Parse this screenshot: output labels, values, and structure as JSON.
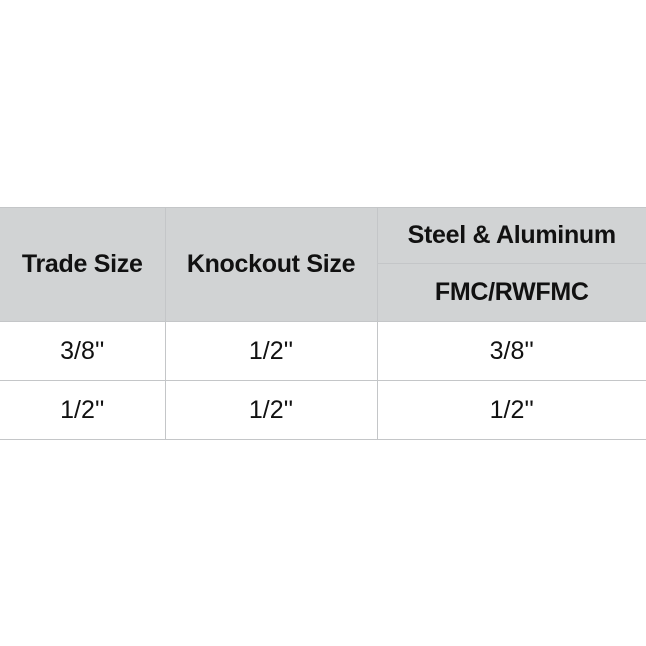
{
  "table": {
    "headers": {
      "trade_size": "Trade Size",
      "knockout_size": "Knockout Size",
      "group": "Steel & Aluminum",
      "sub": "FMC/RWFMC"
    },
    "rows": [
      [
        "3/8''",
        "1/2''",
        "3/8''"
      ],
      [
        "1/2''",
        "1/2''",
        "1/2''"
      ]
    ]
  }
}
